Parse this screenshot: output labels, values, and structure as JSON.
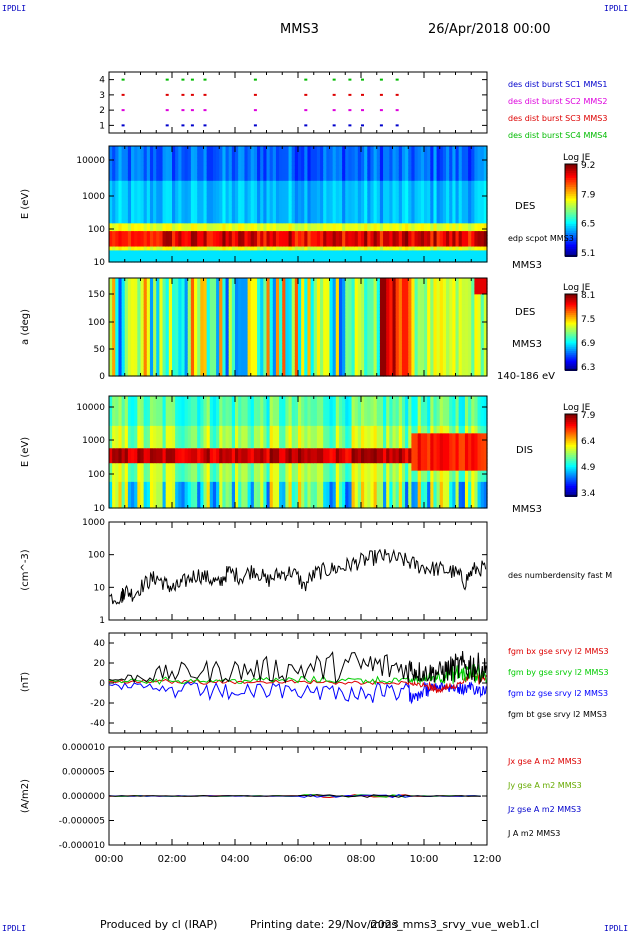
{
  "corners": {
    "tl": "IPDLI",
    "tr": "IPDLI",
    "bl": "IPDLI",
    "br": "IPDLI"
  },
  "header": {
    "title": "MMS3",
    "date": "26/Apr/2018 00:00"
  },
  "footer": {
    "produced": "Produced by cl (IRAP)",
    "printing": "Printing date: 29/Nov/2023",
    "file": "mms_mms3_srvy_vue_web1.cl"
  },
  "colors": {
    "sc1": "#0000cc",
    "sc2": "#dd00dd",
    "sc3": "#dd0000",
    "sc4": "#00bb00",
    "bx": "#dd0000",
    "by": "#00cc00",
    "bz": "#0000ff",
    "bt": "#000000"
  },
  "chart_data": [
    {
      "type": "scatter",
      "panel": "burst",
      "yticks": [
        "1",
        "2",
        "3",
        "4"
      ],
      "ylim": [
        0.5,
        4.5
      ],
      "legend": [
        "des dist burst SC1 MMS1",
        "des dist burst SC2 MMS2",
        "des dist burst SC3 MMS3",
        "des dist burst SC4 MMS4"
      ],
      "series": [
        {
          "name": "des dist burst SC1 MMS1",
          "level": 1,
          "times_h": [
            0.4,
            1.8,
            2.3,
            2.6,
            3.0,
            4.6,
            6.2,
            7.1,
            7.6,
            8.0,
            8.6,
            9.1
          ]
        },
        {
          "name": "des dist burst SC2 MMS2",
          "level": 2,
          "times_h": [
            0.4,
            1.8,
            2.3,
            2.6,
            3.0,
            4.6,
            6.2,
            7.1,
            7.6,
            8.0,
            8.6,
            9.1
          ]
        },
        {
          "name": "des dist burst SC3 MMS3",
          "level": 3,
          "times_h": [
            0.4,
            1.8,
            2.3,
            2.6,
            3.0,
            4.6,
            6.2,
            7.1,
            7.6,
            8.0,
            8.6,
            9.1
          ]
        },
        {
          "name": "des dist burst SC4 MMS4",
          "level": 4,
          "times_h": [
            0.4,
            1.8,
            2.3,
            2.6,
            3.0,
            4.6,
            6.2,
            7.1,
            7.6,
            8.0,
            8.6,
            9.1
          ]
        }
      ]
    },
    {
      "type": "heatmap",
      "panel": "des_energy",
      "ylabel": "E (eV)",
      "yticks": [
        "10",
        "100",
        "1000",
        "10000"
      ],
      "ylim": [
        10,
        25000
      ],
      "yscale": "log",
      "labels": [
        "DES",
        "edp scpot MMS3",
        "MMS3"
      ],
      "colorbar": {
        "title": "Log JE",
        "ticks": [
          "9.2",
          "7.9",
          "6.5",
          "5.1"
        ]
      }
    },
    {
      "type": "heatmap",
      "panel": "des_pitch",
      "ylabel": "a (deg)",
      "yticks": [
        "0",
        "50",
        "100",
        "150"
      ],
      "ylim": [
        0,
        180
      ],
      "labels": [
        "DES",
        "MMS3",
        "140-186 eV"
      ],
      "colorbar": {
        "title": "Log JE",
        "ticks": [
          "8.1",
          "7.5",
          "6.9",
          "6.3"
        ]
      }
    },
    {
      "type": "heatmap",
      "panel": "dis_energy",
      "ylabel": "E (eV)",
      "yticks": [
        "10",
        "100",
        "1000",
        "10000"
      ],
      "ylim": [
        10,
        25000
      ],
      "yscale": "log",
      "labels": [
        "DIS",
        "MMS3"
      ],
      "colorbar": {
        "title": "Log JE",
        "ticks": [
          "7.9",
          "6.4",
          "4.9",
          "3.4"
        ]
      }
    },
    {
      "type": "line",
      "panel": "density",
      "ylabel": "(cm^-3)",
      "yticks": [
        "1",
        "10",
        "100",
        "1000"
      ],
      "ylim": [
        1,
        1000
      ],
      "yscale": "log",
      "series": [
        {
          "name": "des numberdensity fast M",
          "x": [
            0,
            0.4,
            0.5,
            0.8,
            1.2,
            1.5,
            1.8,
            2.1,
            2.4,
            2.8,
            3.2,
            3.5,
            3.8,
            4.2,
            4.6,
            5.0,
            5.4,
            5.8,
            6.2,
            6.6,
            7.0,
            7.4,
            7.8,
            8.2,
            8.6,
            9.0,
            9.4,
            9.8,
            10.2,
            10.6,
            11.0,
            11.3,
            11.6,
            12.0
          ],
          "y": [
            5,
            5,
            8,
            6,
            14,
            20,
            12,
            9,
            15,
            25,
            18,
            12,
            30,
            20,
            35,
            15,
            25,
            30,
            10,
            28,
            35,
            40,
            55,
            70,
            90,
            80,
            65,
            45,
            38,
            35,
            28,
            14,
            35,
            40
          ]
        }
      ]
    },
    {
      "type": "line",
      "panel": "fgm",
      "ylabel": "(nT)",
      "yticks": [
        "-40",
        "-20",
        "0",
        "20",
        "40"
      ],
      "ylim": [
        -50,
        50
      ],
      "series": [
        {
          "name": "fgm bx gse srvy l2 MMS3",
          "x": [
            0,
            2,
            4,
            6,
            8,
            9.5,
            10,
            10.5,
            11,
            11.5,
            12
          ],
          "y": [
            2,
            3,
            2,
            2,
            1,
            0,
            -5,
            -10,
            -5,
            12,
            10
          ]
        },
        {
          "name": "fgm by gse srvy l2 MMS3",
          "x": [
            0,
            2,
            4,
            6,
            8,
            9.5,
            10,
            10.5,
            11,
            11.5,
            12
          ],
          "y": [
            4,
            5,
            5,
            6,
            6,
            5,
            8,
            15,
            18,
            20,
            16
          ]
        },
        {
          "name": "fgm bz gse srvy l2 MMS3",
          "x": [
            0,
            2,
            4,
            6,
            8,
            9.5,
            10,
            10.5,
            11,
            11.5,
            12
          ],
          "y": [
            -3,
            -15,
            -18,
            -15,
            -20,
            -22,
            -15,
            -8,
            -10,
            -15,
            -12
          ]
        },
        {
          "name": "fgm bt gse srvy l2 MMS3",
          "x": [
            0,
            2,
            4,
            6,
            8,
            9.5,
            10,
            10.5,
            11,
            11.5,
            12
          ],
          "y": [
            5,
            20,
            25,
            28,
            35,
            30,
            20,
            22,
            30,
            35,
            25
          ]
        }
      ]
    },
    {
      "type": "line",
      "panel": "current",
      "ylabel": "(A/m2)",
      "yticks": [
        "0.000010",
        "0.000005",
        "0.000000",
        "-0.000005",
        "-0.000010"
      ],
      "ylim": [
        -1e-05,
        1e-05
      ],
      "series": [
        {
          "name": "Jx gse A m2 MMS3",
          "x": [
            0,
            6,
            8,
            9,
            12
          ],
          "y": [
            0,
            0,
            3e-07,
            0,
            0
          ]
        },
        {
          "name": "Jy gse A m2 MMS3",
          "x": [
            0,
            6,
            8,
            9,
            12
          ],
          "y": [
            0,
            0,
            2e-07,
            0,
            0
          ]
        },
        {
          "name": "Jz gse A m2 MMS3",
          "x": [
            0,
            6,
            8,
            9,
            12
          ],
          "y": [
            0,
            0,
            -3e-07,
            0,
            0
          ]
        },
        {
          "name": "J A m2 MMS3",
          "x": [
            0,
            6,
            8,
            9,
            12
          ],
          "y": [
            0,
            1e-07,
            4e-07,
            1e-07,
            0
          ]
        }
      ]
    }
  ],
  "xaxis": {
    "ticks": [
      "00:00",
      "02:00",
      "04:00",
      "06:00",
      "08:00",
      "10:00",
      "12:00"
    ],
    "range_h": [
      0,
      12
    ]
  }
}
